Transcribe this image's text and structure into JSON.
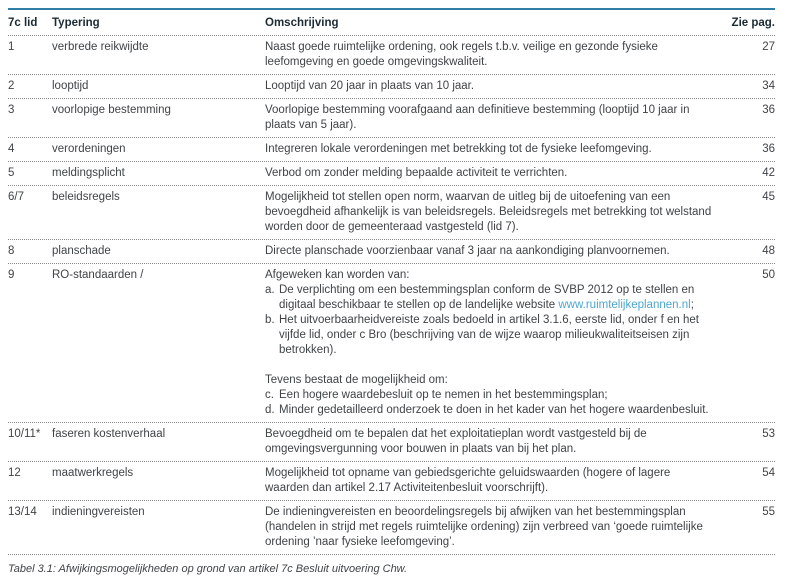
{
  "colors": {
    "accent_rule": "#2e7ea8",
    "header_text": "#1c2b33",
    "body_text": "#3f4447",
    "link": "#4ba6cf",
    "divider_dotted": "#8c8c8c"
  },
  "table": {
    "columns": {
      "lid": "7c lid",
      "typering": "Typering",
      "omschrijving": "Omschrijving",
      "pag": "Zie pag."
    },
    "rows": [
      {
        "lid": "1",
        "typering": "verbrede reikwijdte",
        "pag": "27",
        "omschrijving": [
          {
            "type": "text",
            "text": "Naast goede ruimtelijke ordening, ook regels t.b.v. veilige en gezonde fysieke leefomgeving en goede omgevingskwaliteit."
          }
        ]
      },
      {
        "lid": "2",
        "typering": "looptijd",
        "pag": "34",
        "omschrijving": [
          {
            "type": "text",
            "text": "Looptijd van 20 jaar in plaats van 10 jaar."
          }
        ]
      },
      {
        "lid": "3",
        "typering": "voorlopige bestemming",
        "pag": "36",
        "omschrijving": [
          {
            "type": "text",
            "text": "Voorlopige bestemming voorafgaand aan definitieve bestemming (looptijd 10 jaar in plaats van 5 jaar)."
          }
        ]
      },
      {
        "lid": "4",
        "typering": "verordeningen",
        "pag": "36",
        "omschrijving": [
          {
            "type": "text",
            "text": "Integreren lokale verordeningen met betrekking tot de fysieke leefomgeving."
          }
        ]
      },
      {
        "lid": "5",
        "typering": "meldingsplicht",
        "pag": "42",
        "omschrijving": [
          {
            "type": "text",
            "text": "Verbod om zonder melding bepaalde activiteit te verrichten."
          }
        ]
      },
      {
        "lid": "6/7",
        "typering": "beleidsregels",
        "pag": "45",
        "omschrijving": [
          {
            "type": "text",
            "text": "Mogelijkheid tot stellen open norm, waarvan de uitleg bij de uitoefening van een bevoegdheid afhankelijk is van beleidsregels. Beleidsregels met betrekking tot welstand worden door de gemeenteraad vastgesteld (lid 7)."
          }
        ]
      },
      {
        "lid": "8",
        "typering": "planschade",
        "pag": "48",
        "omschrijving": [
          {
            "type": "text",
            "text": "Directe planschade voorzienbaar vanaf 3 jaar na aankondiging planvoornemen."
          }
        ]
      },
      {
        "lid": "9",
        "typering": "RO-standaarden /",
        "pag": "50",
        "omschrijving": [
          {
            "type": "text",
            "text": "Afgeweken kan worden van:"
          },
          {
            "type": "item",
            "marker": "a.",
            "segments": [
              {
                "text": "De verplichting om een bestemmingsplan conform de SVBP 2012 op te stellen en digitaal beschikbaar te stellen op de landelijke website "
              },
              {
                "text": "www.ruimtelijkeplannen.nl",
                "link": true
              },
              {
                "text": ";"
              }
            ]
          },
          {
            "type": "item",
            "marker": "b.",
            "segments": [
              {
                "text": "Het uitvoerbaarheidvereiste zoals bedoeld in artikel 3.1.6, eerste lid, onder f en het vijfde lid, onder c Bro (beschrijving van de wijze waarop milieukwaliteitseisen zijn betrokken)."
              }
            ]
          },
          {
            "type": "spacer"
          },
          {
            "type": "text",
            "text": "Tevens bestaat de mogelijkheid om:"
          },
          {
            "type": "item",
            "marker": "c.",
            "segments": [
              {
                "text": "Een hogere waardebesluit op te nemen in het bestemmingsplan;"
              }
            ]
          },
          {
            "type": "item",
            "marker": "d.",
            "segments": [
              {
                "text": "Minder gedetailleerd onderzoek te doen in het kader van het hogere waardenbesluit."
              }
            ]
          }
        ]
      },
      {
        "lid": "10/11*",
        "typering": "faseren kostenverhaal",
        "pag": "53",
        "omschrijving": [
          {
            "type": "text",
            "text": "Bevoegdheid om te bepalen dat het exploitatieplan wordt vastgesteld bij de omgevingsvergunning voor bouwen in plaats van bij het plan."
          }
        ]
      },
      {
        "lid": "12",
        "typering": "maatwerkregels",
        "pag": "54",
        "omschrijving": [
          {
            "type": "text",
            "text": "Mogelijkheid tot opname van gebiedsgerichte geluidswaarden (hogere of lagere waarden dan artikel 2.17 Activiteitenbesluit voorschrijft)."
          }
        ]
      },
      {
        "lid": "13/14",
        "typering": "indieningvereisten",
        "pag": "55",
        "omschrijving": [
          {
            "type": "text",
            "text": "De indieningvereisten en beoordelingsregels bij afwijken van het bestemmingsplan (handelen in strijd met regels ruimtelijke ordening) zijn verbreed van ‘goede ruimtelijke ordening ’naar fysieke leefomgeving’."
          }
        ]
      }
    ],
    "caption": "Tabel 3.1: Afwijkingsmogelijkheden op grond van artikel 7c Besluit uitvoering Chw."
  }
}
